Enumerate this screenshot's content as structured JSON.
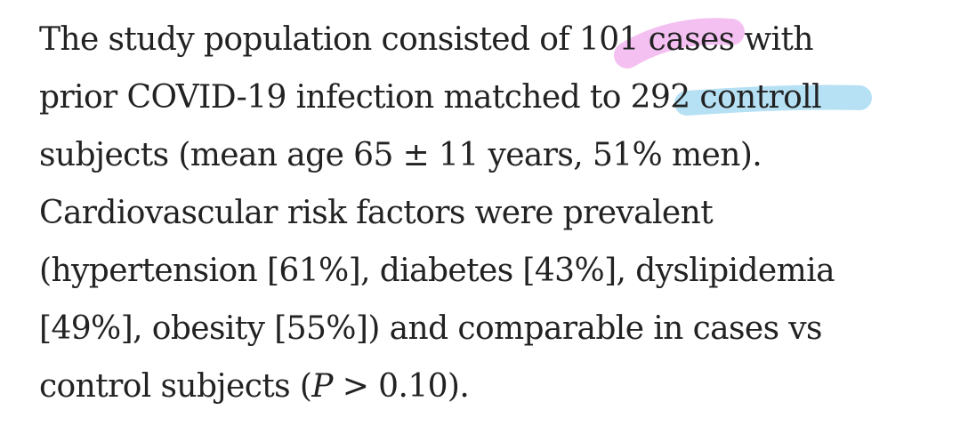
{
  "document": {
    "highlight_colors": {
      "pink": "#f2b5ef",
      "blue": "#a9dcf3"
    },
    "paragraph": {
      "line1": {
        "pre": "The study population consisted of ",
        "hl": "101",
        "post": " cases with"
      },
      "line2": {
        "pre": "prior COVID-19 infection matched to ",
        "hl": "292 control",
        "post": ""
      },
      "line3": "subjects (mean age 65 ± 11 years, 51% men).",
      "line4": "Cardiovascular risk factors were prevalent",
      "line5": "(hypertension [61%], diabetes [43%], dyslipidemia",
      "line6": "[49%], obesity [55%]) and comparable in cases vs",
      "line7": {
        "pre": "control subjects (",
        "p": "P",
        "post": " > 0.10)."
      }
    }
  }
}
